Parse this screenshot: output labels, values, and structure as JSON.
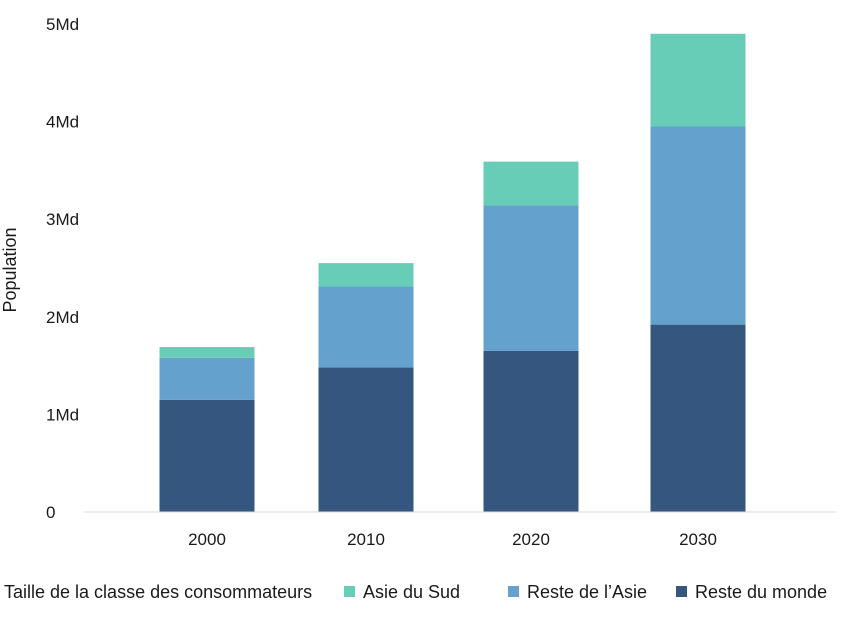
{
  "chart_data": {
    "type": "bar",
    "stacked": true,
    "categories": [
      "2000",
      "2010",
      "2020",
      "2030"
    ],
    "series": [
      {
        "name": "Reste du monde",
        "color": "#34567f",
        "values": [
          1.15,
          1.48,
          1.65,
          1.92
        ]
      },
      {
        "name": "Reste de l’Asie",
        "color": "#65a1cd",
        "values": [
          0.43,
          0.83,
          1.49,
          2.03
        ]
      },
      {
        "name": "Asie du Sud",
        "color": "#68cdb7",
        "values": [
          0.11,
          0.24,
          0.45,
          0.95
        ]
      }
    ],
    "ylabel": "Population",
    "ylim": [
      0,
      5
    ],
    "yticks": [
      {
        "value": 0,
        "label": "0"
      },
      {
        "value": 1,
        "label": "1Md"
      },
      {
        "value": 2,
        "label": "2Md"
      },
      {
        "value": 3,
        "label": "3Md"
      },
      {
        "value": 4,
        "label": "4Md"
      },
      {
        "value": 5,
        "label": "5Md"
      }
    ],
    "grid": false,
    "legend": {
      "title": "Taille de la classe des consommateurs",
      "position": "bottom",
      "order": [
        "Asie du Sud",
        "Reste de l’Asie",
        "Reste du monde"
      ]
    }
  }
}
